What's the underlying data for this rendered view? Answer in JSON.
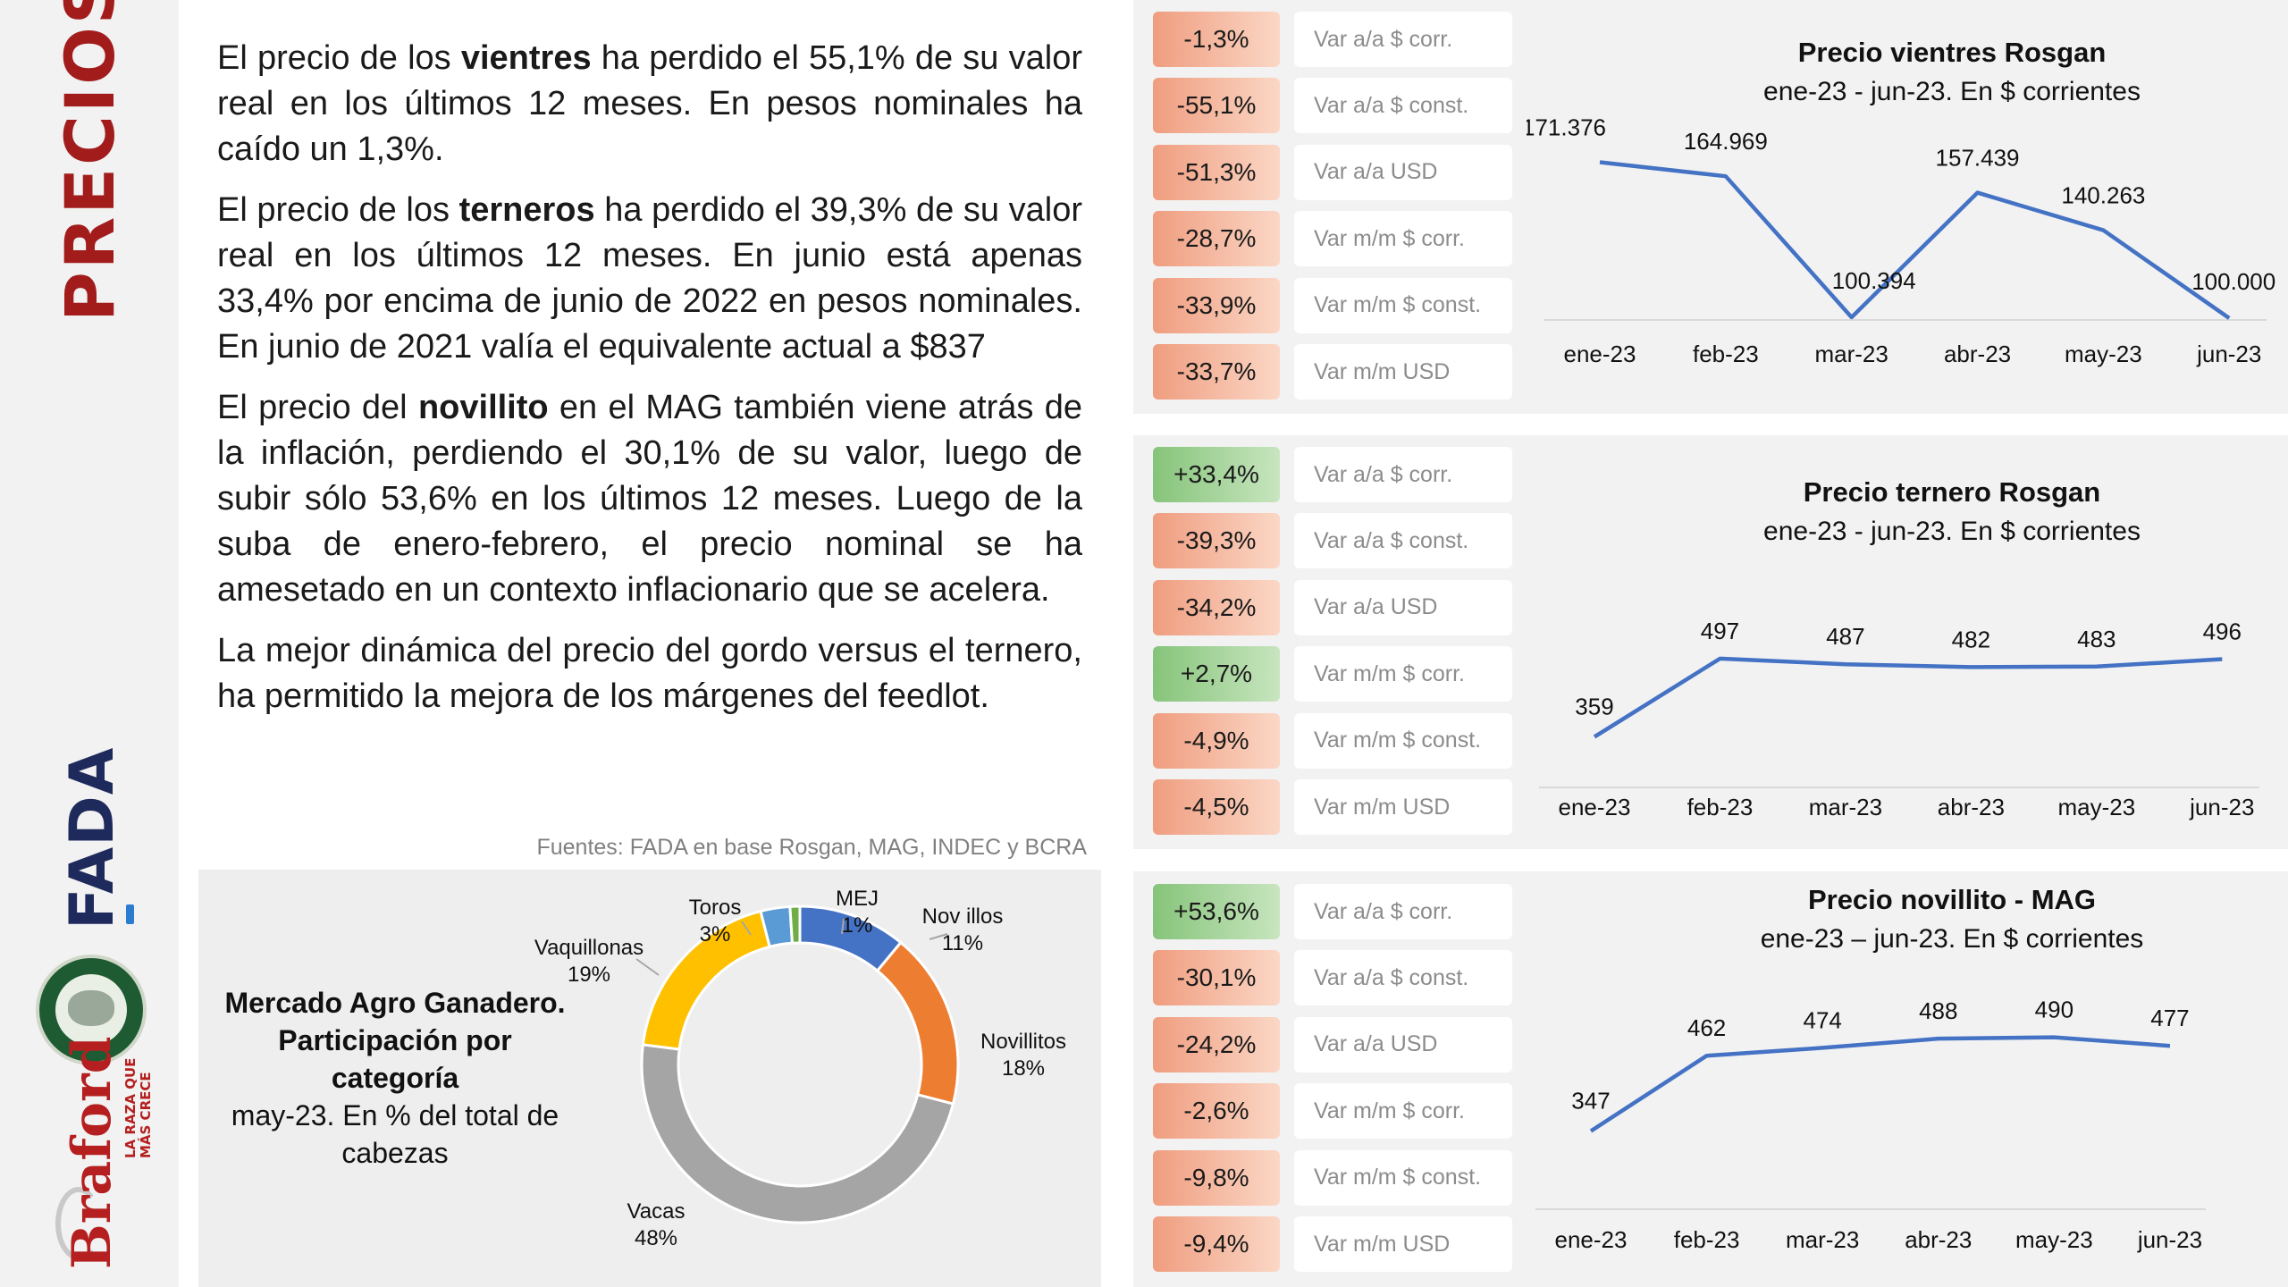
{
  "sidebar": {
    "title": "PRECIOS",
    "fada_logo": "FADA",
    "braford_logo": "Braford",
    "braford_tagline": "LA RAZA QUE MÁS CRECE"
  },
  "paragraphs": [
    {
      "before": "El precio de los ",
      "bold": "vientres",
      "after": " ha perdido el 55,1% de su valor real en los últimos 12 meses. En pesos nominales ha caído un 1,3%."
    },
    {
      "before": "El precio de los ",
      "bold": "terneros",
      "after": " ha perdido el 39,3% de su valor real en los últimos 12 meses. En junio está apenas 33,4% por encima de junio de 2022 en pesos nominales. En junio de 2021 valía el equivalente actual a $837"
    },
    {
      "before": "El precio del ",
      "bold": "novillito",
      "after": " en el MAG también viene atrás de la inflación, perdiendo el 30,1% de su valor, luego de subir sólo 53,6% en los últimos 12 meses. Luego de la suba de enero-febrero, el precio nominal se ha amesetado en un contexto inflacionario que se acelera."
    },
    {
      "before": "",
      "bold": "",
      "after": "La mejor dinámica del precio del gordo versus el ternero, ha permitido la mejora de los márgenes del feedlot."
    }
  ],
  "sources": "Fuentes: FADA en base Rosgan, MAG, INDEC y BCRA",
  "colors": {
    "line": "#4472c4",
    "negative": "#f4b183",
    "positive": "#a9d18e",
    "title_red": "#a31c1c"
  },
  "indicator_groups": [
    {
      "items": [
        {
          "value": "-1,3%",
          "label": "Var a/a $ corr.",
          "sign": "neg"
        },
        {
          "value": "-55,1%",
          "label": "Var a/a $ const.",
          "sign": "neg"
        },
        {
          "value": "-51,3%",
          "label": "Var a/a USD",
          "sign": "neg"
        },
        {
          "value": "-28,7%",
          "label": "Var m/m $ corr.",
          "sign": "neg"
        },
        {
          "value": "-33,9%",
          "label": "Var m/m $ const.",
          "sign": "neg"
        },
        {
          "value": "-33,7%",
          "label": "Var m/m USD",
          "sign": "neg"
        }
      ]
    },
    {
      "items": [
        {
          "value": "+33,4%",
          "label": "Var a/a $ corr.",
          "sign": "pos"
        },
        {
          "value": "-39,3%",
          "label": "Var a/a $ const.",
          "sign": "neg"
        },
        {
          "value": "-34,2%",
          "label": "Var a/a USD",
          "sign": "neg"
        },
        {
          "value": "+2,7%",
          "label": "Var m/m $ corr.",
          "sign": "pos"
        },
        {
          "value": "-4,9%",
          "label": "Var m/m $ const.",
          "sign": "neg"
        },
        {
          "value": "-4,5%",
          "label": "Var m/m USD",
          "sign": "neg"
        }
      ]
    },
    {
      "items": [
        {
          "value": "+53,6%",
          "label": "Var a/a $ corr.",
          "sign": "pos"
        },
        {
          "value": "-30,1%",
          "label": "Var a/a $ const.",
          "sign": "neg"
        },
        {
          "value": "-24,2%",
          "label": "Var a/a USD",
          "sign": "neg"
        },
        {
          "value": "-2,6%",
          "label": "Var m/m $ corr.",
          "sign": "neg"
        },
        {
          "value": "-9,8%",
          "label": "Var m/m $ const.",
          "sign": "neg"
        },
        {
          "value": "-9,4%",
          "label": "Var m/m USD",
          "sign": "neg"
        }
      ]
    }
  ],
  "chart_data": [
    {
      "type": "line",
      "title": "Precio vientres Rosgan",
      "subtitle": "ene-23 - jun-23. En $ corrientes",
      "categories": [
        "ene-23",
        "feb-23",
        "mar-23",
        "abr-23",
        "may-23",
        "jun-23"
      ],
      "values": [
        171376,
        164969,
        100394,
        157439,
        140263,
        100000
      ],
      "data_labels": [
        "171.376",
        "164.969",
        "100.394",
        "157.439",
        "140.263",
        "100.000"
      ],
      "ylim": [
        100000,
        172000
      ],
      "grid": false
    },
    {
      "type": "line",
      "title": "Precio ternero Rosgan",
      "subtitle": "ene-23 - jun-23. En $ corrientes",
      "categories": [
        "ene-23",
        "feb-23",
        "mar-23",
        "abr-23",
        "may-23",
        "jun-23"
      ],
      "values": [
        359,
        497,
        487,
        482,
        483,
        496
      ],
      "data_labels": [
        "359",
        "497",
        "487",
        "482",
        "483",
        "496"
      ],
      "ylim": [
        355,
        500
      ],
      "grid": false
    },
    {
      "type": "line",
      "title": "Precio novillito - MAG",
      "subtitle": "ene-23 – jun-23. En $ corrientes",
      "categories": [
        "ene-23",
        "feb-23",
        "mar-23",
        "abr-23",
        "may-23",
        "jun-23"
      ],
      "values": [
        347,
        462,
        474,
        488,
        490,
        477
      ],
      "data_labels": [
        "347",
        "462",
        "474",
        "488",
        "490",
        "477"
      ],
      "ylim": [
        345,
        495
      ],
      "grid": false
    },
    {
      "type": "pie",
      "title": "Mercado Agro Ganadero. Participación por categoría",
      "subtitle": "may-23. En % del total de cabezas",
      "categories": [
        "Nov illos",
        "Novillitos",
        "Vacas",
        "Vaquillonas",
        "Toros",
        "MEJ"
      ],
      "values": [
        11,
        18,
        48,
        19,
        3,
        1
      ],
      "labels": [
        "11%",
        "18%",
        "48%",
        "19%",
        "3%",
        "1%"
      ],
      "colors": [
        "#4472c4",
        "#ed7d31",
        "#a5a5a5",
        "#ffc000",
        "#5b9bd5",
        "#70ad47"
      ],
      "legend": "none"
    }
  ]
}
